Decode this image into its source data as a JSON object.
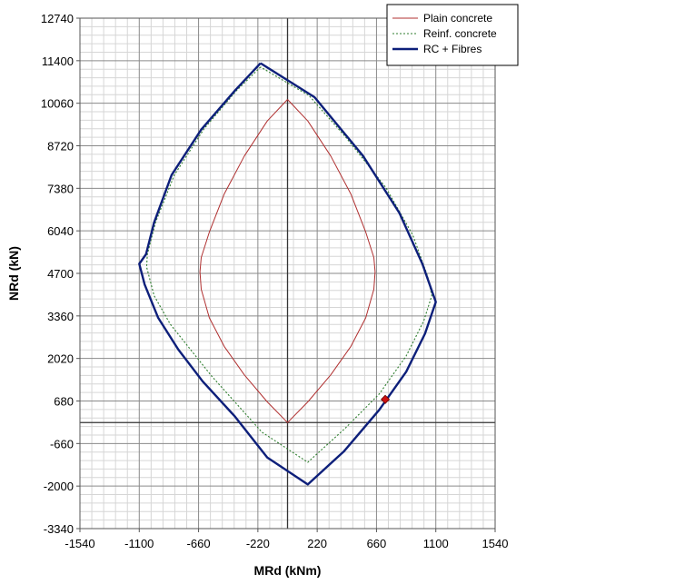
{
  "chart_data": {
    "type": "line",
    "title": "",
    "xlabel": "MRd (kNm)",
    "ylabel": "NRd (kN)",
    "xlim": [
      -1540,
      1540
    ],
    "ylim": [
      -3340,
      12740
    ],
    "x_ticks": [
      -1540,
      -1100,
      -660,
      -220,
      220,
      660,
      1100,
      1540
    ],
    "y_ticks": [
      -3340,
      -2000,
      -660,
      680,
      2020,
      3360,
      4700,
      6040,
      7380,
      8720,
      10060,
      11400,
      12740
    ],
    "x_tick_labels": [
      "-1540",
      "-1100",
      "-660",
      "-220",
      "220",
      "660",
      "1100",
      "1540"
    ],
    "y_tick_labels": [
      "-3340",
      "-2000",
      "-660",
      "680",
      "2020",
      "3360",
      "4700",
      "6040",
      "7380",
      "8720",
      "10060",
      "11400",
      "12740"
    ],
    "grid": true,
    "minor_grid": true,
    "legend_position": "top-right",
    "series": [
      {
        "name": "Plain concrete",
        "color": "#b03030",
        "style": "solid",
        "points": [
          [
            0,
            10180
          ],
          [
            -150,
            9500
          ],
          [
            -320,
            8400
          ],
          [
            -470,
            7200
          ],
          [
            -580,
            6000
          ],
          [
            -640,
            5200
          ],
          [
            -650,
            4750
          ],
          [
            -640,
            4200
          ],
          [
            -580,
            3300
          ],
          [
            -470,
            2400
          ],
          [
            -320,
            1500
          ],
          [
            -150,
            650
          ],
          [
            0,
            0
          ],
          [
            150,
            650
          ],
          [
            320,
            1500
          ],
          [
            470,
            2400
          ],
          [
            580,
            3300
          ],
          [
            640,
            4200
          ],
          [
            650,
            4750
          ],
          [
            640,
            5200
          ],
          [
            580,
            6000
          ],
          [
            470,
            7200
          ],
          [
            320,
            8400
          ],
          [
            150,
            9500
          ],
          [
            0,
            10180
          ]
        ]
      },
      {
        "name": "Reinf. concrete",
        "color": "#2e7d2e",
        "style": "dotted",
        "points": [
          [
            -200,
            11200
          ],
          [
            -380,
            10450
          ],
          [
            -620,
            9250
          ],
          [
            -840,
            7800
          ],
          [
            -980,
            6300
          ],
          [
            -1040,
            5300
          ],
          [
            -1045,
            4900
          ],
          [
            -990,
            4000
          ],
          [
            -870,
            3100
          ],
          [
            -720,
            2300
          ],
          [
            -560,
            1450
          ],
          [
            -380,
            600
          ],
          [
            -190,
            -300
          ],
          [
            150,
            -1250
          ],
          [
            430,
            -170
          ],
          [
            680,
            900
          ],
          [
            880,
            2100
          ],
          [
            1010,
            3200
          ],
          [
            1070,
            4000
          ],
          [
            1040,
            4600
          ],
          [
            930,
            5900
          ],
          [
            730,
            7400
          ],
          [
            430,
            9000
          ],
          [
            160,
            10300
          ],
          [
            -200,
            11200
          ]
        ]
      },
      {
        "name": "RC + Fibres",
        "color": "#0d1f7a",
        "style": "solid",
        "points": [
          [
            -200,
            11320
          ],
          [
            -390,
            10460
          ],
          [
            -640,
            9230
          ],
          [
            -860,
            7800
          ],
          [
            -990,
            6300
          ],
          [
            -1050,
            5300
          ],
          [
            -1100,
            5000
          ],
          [
            -1060,
            4350
          ],
          [
            -960,
            3300
          ],
          [
            -810,
            2300
          ],
          [
            -630,
            1300
          ],
          [
            -390,
            190
          ],
          [
            -150,
            -1100
          ],
          [
            150,
            -1950
          ],
          [
            420,
            -900
          ],
          [
            680,
            400
          ],
          [
            880,
            1600
          ],
          [
            1020,
            2800
          ],
          [
            1100,
            3800
          ],
          [
            1000,
            5000
          ],
          [
            830,
            6600
          ],
          [
            560,
            8400
          ],
          [
            200,
            10250
          ],
          [
            -200,
            11320
          ]
        ]
      }
    ],
    "markers": [
      {
        "x": 725,
        "y": 730,
        "shape": "diamond",
        "color": "#cc1111"
      }
    ]
  }
}
